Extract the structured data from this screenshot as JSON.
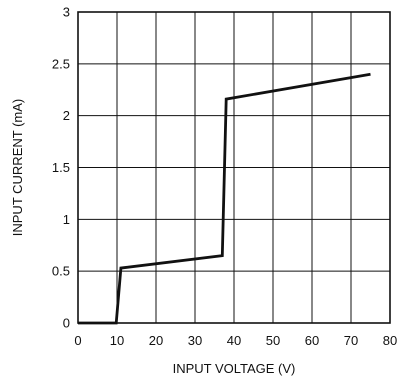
{
  "chart_data": {
    "type": "line",
    "title": "",
    "xlabel": "INPUT VOLTAGE (V)",
    "ylabel": "INPUT CURRENT (mA)",
    "xlim": [
      0,
      80
    ],
    "ylim": [
      0,
      3
    ],
    "xticks": [
      "0",
      "10",
      "20",
      "30",
      "40",
      "50",
      "60",
      "70",
      "80"
    ],
    "yticks": [
      "0",
      "0.5",
      "1",
      "1.5",
      "2",
      "2.5",
      "3"
    ],
    "grid": true,
    "legend": "none",
    "series": [
      {
        "x": [
          0,
          9.8,
          11,
          37,
          38,
          75
        ],
        "y": [
          0,
          0,
          0.53,
          0.65,
          2.16,
          2.4
        ]
      }
    ],
    "colors": {
      "line": "#111111",
      "grid": "#111111",
      "frame": "#111111"
    }
  }
}
